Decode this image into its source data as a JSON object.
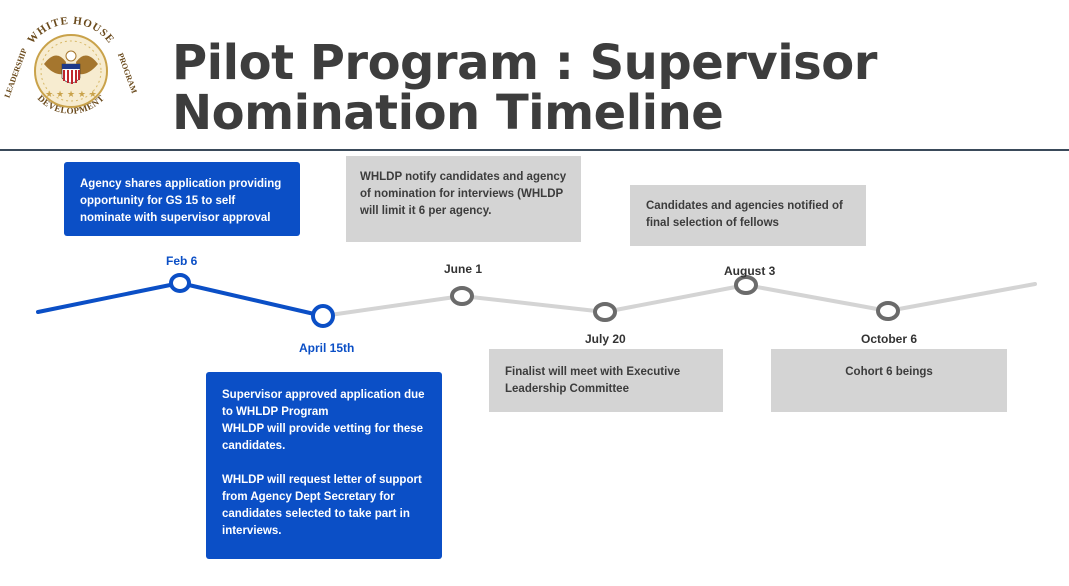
{
  "header": {
    "seal_text_top": "WHITE HOUSE",
    "seal_text_left": "LEADERSHIP",
    "seal_text_bottom": "DEVELOPMENT",
    "seal_text_right": "PROGRAM",
    "title": "Pilot Program : Supervisor Nomination Timeline"
  },
  "colors": {
    "completed": "#0b4fc6",
    "upcoming": "#d4d4d4",
    "node_upcoming": "#6b6b6b",
    "title": "#3d3d3d"
  },
  "milestones": [
    {
      "date": "Feb 6",
      "status": "completed",
      "description": "Agency shares application providing opportunity for GS 15 to self nominate with supervisor approval"
    },
    {
      "date": "April 15th",
      "status": "completed",
      "description": "Supervisor approved application due to WHLDP Program\nWHLDP will provide vetting for these candidates.\n\nWHLDP will request letter of support from Agency Dept Secretary for candidates selected to take part in interviews."
    },
    {
      "date": "June 1",
      "status": "upcoming",
      "description": "WHLDP notify candidates and agency of nomination for interviews (WHLDP will limit it 6 per agency."
    },
    {
      "date": "July 20",
      "status": "upcoming",
      "description": "Finalist will meet with Executive Leadership Committee"
    },
    {
      "date": "August 3",
      "status": "upcoming",
      "description": "Candidates and agencies notified of final selection of fellows"
    },
    {
      "date": "October 6",
      "status": "upcoming",
      "description": "Cohort 6 beings"
    }
  ]
}
